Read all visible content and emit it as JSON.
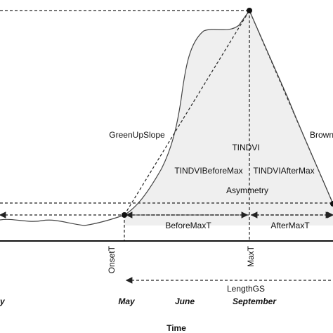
{
  "labels": {
    "green_up_slope": "GreenUpSlope",
    "brown_down_slope": "Brown",
    "tindvi": "TINDVI",
    "tindvi_before_max": "TINDVIBeforeMax",
    "tindvi_after_max": "TINDVIAfterMax",
    "asymmetry": "Asymmetry",
    "before_max_t": "BeforeMaxT",
    "after_max_t": "AfterMaxT",
    "onset_t": "OnsetT",
    "max_t": "MaxT",
    "length_gs": "LengthGS"
  },
  "months": [
    "y",
    "May",
    "June",
    "September"
  ],
  "axis_title": "Time"
}
